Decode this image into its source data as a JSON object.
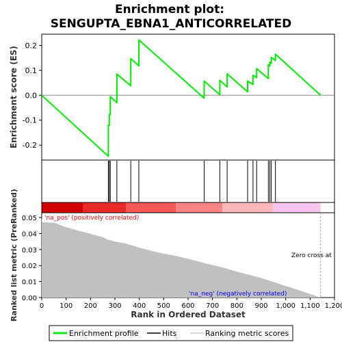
{
  "chart_data": {
    "type": "line",
    "title_lines": [
      "Enrichment plot:",
      "SENGUPTA_EBNA1_ANTICORRELATED"
    ],
    "es_panel": {
      "ylabel": "Enrichment score (ES)",
      "ylim": [
        -0.26,
        0.245
      ],
      "yticks": [
        -0.2,
        -0.1,
        0.0,
        0.1,
        0.2
      ],
      "ytick_labels": [
        "-0.2",
        "-0.1",
        "0.0",
        "0.1",
        "0.2"
      ],
      "line_color": "#00ee00",
      "zero_line_color": "#888888",
      "points": [
        [
          0,
          0.0
        ],
        [
          273,
          -0.245
        ],
        [
          273,
          -0.12
        ],
        [
          277,
          -0.12
        ],
        [
          277,
          -0.078
        ],
        [
          281,
          -0.078
        ],
        [
          281,
          -0.005
        ],
        [
          308,
          -0.03
        ],
        [
          308,
          0.085
        ],
        [
          365,
          0.038
        ],
        [
          365,
          0.147
        ],
        [
          398,
          0.118
        ],
        [
          398,
          0.222
        ],
        [
          666,
          -0.012
        ],
        [
          666,
          0.057
        ],
        [
          730,
          0.002
        ],
        [
          730,
          0.06
        ],
        [
          760,
          0.033
        ],
        [
          760,
          0.086
        ],
        [
          844,
          0.014
        ],
        [
          844,
          0.057
        ],
        [
          866,
          0.043
        ],
        [
          866,
          0.08
        ],
        [
          881,
          0.071
        ],
        [
          881,
          0.107
        ],
        [
          929,
          0.067
        ],
        [
          929,
          0.123
        ],
        [
          935,
          0.118
        ],
        [
          935,
          0.133
        ],
        [
          941,
          0.128
        ],
        [
          941,
          0.152
        ],
        [
          958,
          0.14
        ],
        [
          958,
          0.165
        ],
        [
          1143,
          0.0
        ]
      ]
    },
    "hits": [
      273,
      277,
      281,
      308,
      365,
      398,
      666,
      730,
      760,
      844,
      866,
      881,
      929,
      935,
      941,
      958
    ],
    "heat_segments": [
      {
        "from": 0,
        "to": 170,
        "color": "#d40000"
      },
      {
        "from": 170,
        "to": 345,
        "color": "#eb2a2a"
      },
      {
        "from": 345,
        "to": 550,
        "color": "#f85858"
      },
      {
        "from": 550,
        "to": 740,
        "color": "#fa8484"
      },
      {
        "from": 740,
        "to": 948,
        "color": "#fcb8b8"
      },
      {
        "from": 948,
        "to": 1143,
        "color": "#f6c6ee"
      }
    ],
    "ranked_panel": {
      "ylabel": "Ranked list metric (PreRanked)",
      "ylim": [
        0,
        0.053
      ],
      "yticks": [
        0.0,
        0.01,
        0.02,
        0.03,
        0.04,
        0.05
      ],
      "ytick_labels": [
        "0.00",
        "0.01",
        "0.02",
        "0.03",
        "0.04",
        "0.05"
      ],
      "fill_color": "#c0c0c0",
      "profile": [
        [
          0,
          0.051
        ],
        [
          2,
          0.047
        ],
        [
          50,
          0.0468
        ],
        [
          100,
          0.044
        ],
        [
          150,
          0.0418
        ],
        [
          200,
          0.0398
        ],
        [
          250,
          0.0378
        ],
        [
          270,
          0.0362
        ],
        [
          300,
          0.035
        ],
        [
          350,
          0.0335
        ],
        [
          400,
          0.0312
        ],
        [
          450,
          0.0292
        ],
        [
          500,
          0.0275
        ],
        [
          550,
          0.026
        ],
        [
          600,
          0.0242
        ],
        [
          650,
          0.0222
        ],
        [
          700,
          0.0203
        ],
        [
          750,
          0.0185
        ],
        [
          800,
          0.0162
        ],
        [
          850,
          0.0142
        ],
        [
          900,
          0.0122
        ],
        [
          950,
          0.0098
        ],
        [
          1000,
          0.0072
        ],
        [
          1050,
          0.0048
        ],
        [
          1100,
          0.0022
        ],
        [
          1143,
          0.0
        ]
      ],
      "pos_label": "'na_pos' (positively correlated)",
      "neg_label": "'na_neg' (negatively correlated)",
      "zero_cross_label": "Zero cross at",
      "zero_cross_x": 1143
    },
    "xlabel": "Rank in Ordered Dataset",
    "xlim": [
      0,
      1200
    ],
    "xticks": [
      0,
      100,
      200,
      300,
      400,
      500,
      600,
      700,
      800,
      900,
      1000,
      1100,
      1200
    ],
    "xtick_labels": [
      "0",
      "100",
      "200",
      "300",
      "400",
      "500",
      "600",
      "700",
      "800",
      "900",
      "1,000",
      "1,100",
      "1,200"
    ],
    "legend": {
      "position": "bottom",
      "items": [
        {
          "label": "Enrichment profile",
          "kind": "green-line"
        },
        {
          "label": "Hits",
          "kind": "black-line"
        },
        {
          "label": "Ranking metric scores",
          "kind": "gray-line"
        }
      ]
    },
    "colors": {
      "pos_label": "#ff0000",
      "neg_label": "#0000ff",
      "zero_cross_line": "#aaaaaa"
    }
  }
}
